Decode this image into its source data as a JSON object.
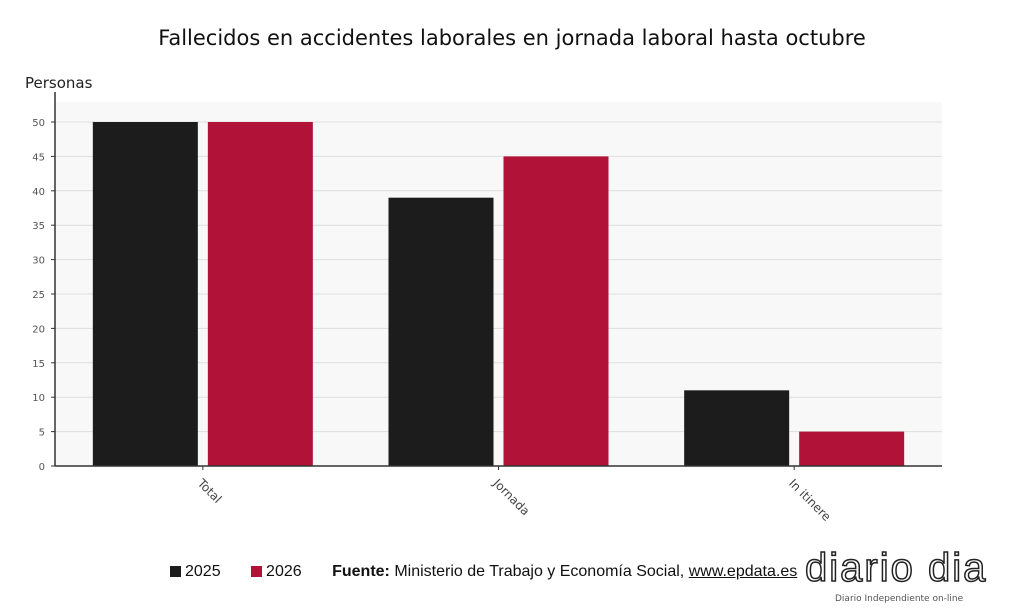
{
  "chart_data": {
    "type": "bar",
    "title": "Fallecidos en accidentes laborales en jornada laboral hasta octubre",
    "ylabel": "Personas",
    "xlabel": "",
    "categories": [
      "Total",
      "Jornada",
      "In itinere"
    ],
    "series": [
      {
        "name": "2025",
        "values": [
          50,
          39,
          11
        ],
        "color": "#1c1c1c"
      },
      {
        "name": "2026",
        "values": [
          50,
          45,
          5
        ],
        "color": "#b01238"
      }
    ],
    "ylim": [
      0,
      50
    ],
    "yticks": [
      0,
      5,
      10,
      15,
      20,
      25,
      30,
      35,
      40,
      45,
      50
    ],
    "grid": true,
    "legend": "bottom-left"
  },
  "footer": {
    "source_label": "Fuente:",
    "source_text": "Ministerio de Trabajo y Economía Social,",
    "source_link": "www.epdata.es"
  },
  "logo": {
    "name": "diario dia",
    "tagline": "Diario Independiente on-line"
  }
}
